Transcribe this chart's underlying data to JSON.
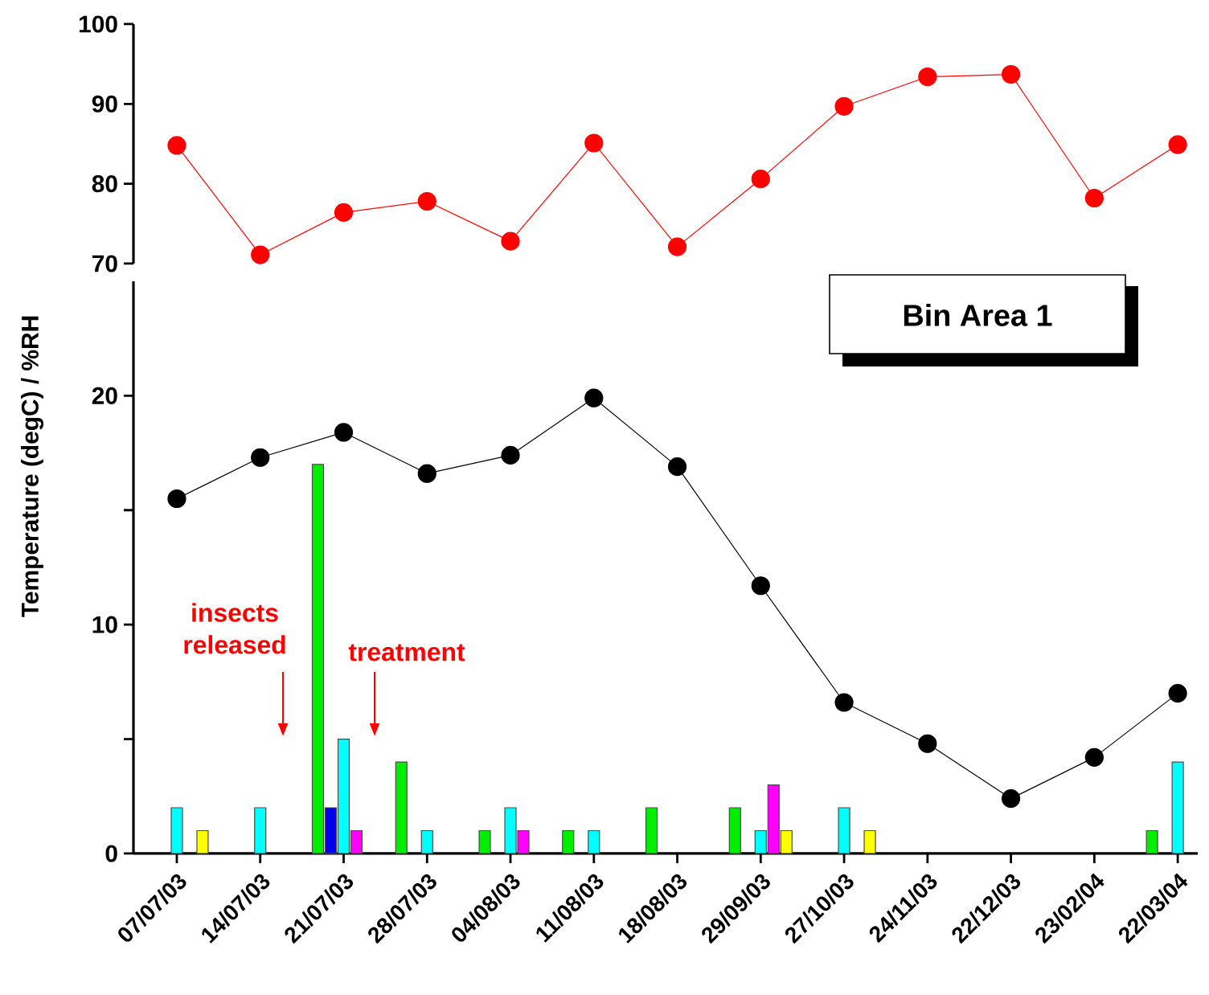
{
  "chart_data": [
    {
      "type": "line",
      "categories": [
        null,
        null,
        null,
        null,
        null,
        null,
        null,
        null,
        null,
        null,
        null,
        null,
        null
      ],
      "series": [
        {
          "color": "#ff0000",
          "values": [
            84.8,
            71.1,
            76.4,
            77.8,
            72.8,
            85.1,
            72.1,
            80.6,
            89.7,
            93.4,
            93.7,
            78.2,
            84.9
          ]
        }
      ],
      "ylim": [
        70,
        100
      ],
      "yticks": [
        70,
        80,
        90,
        100
      ],
      "tick_labels": "y",
      "marker": "circle",
      "line_style": "solid"
    },
    {
      "type": "bar",
      "ylabel": "Temperature (degC) / %RH",
      "categories": [
        "07/07/03",
        "14/07/03",
        "21/07/03",
        "28/07/03",
        "04/08/03",
        "11/08/03",
        "18/08/03",
        "29/09/03",
        "27/10/03",
        "24/11/03",
        "22/12/03",
        "23/02/04",
        "22/03/04"
      ],
      "series": [
        {
          "type": "line",
          "color": "#000000",
          "values": [
            15.5,
            17.3,
            18.4,
            16.6,
            17.4,
            19.9,
            16.9,
            11.7,
            6.6,
            4.8,
            2.4,
            4.2,
            7.0
          ]
        },
        {
          "color": "#00ee00",
          "values": [
            null,
            null,
            17,
            4,
            1,
            1,
            2,
            2,
            null,
            null,
            null,
            null,
            1
          ]
        },
        {
          "color": "#0000ee",
          "values": [
            null,
            null,
            2,
            null,
            null,
            null,
            null,
            null,
            null,
            null,
            null,
            null,
            null
          ]
        },
        {
          "color": "#00ffff",
          "values": [
            2,
            2,
            5,
            1,
            2,
            1,
            null,
            1,
            2,
            null,
            null,
            null,
            4
          ]
        },
        {
          "color": "#ff00ff",
          "values": [
            null,
            null,
            1,
            null,
            1,
            null,
            null,
            3,
            null,
            null,
            null,
            null,
            null
          ]
        },
        {
          "color": "#ffff00",
          "values": [
            1,
            null,
            null,
            null,
            null,
            null,
            null,
            1,
            1,
            null,
            null,
            null,
            null
          ]
        }
      ],
      "ylim": [
        0,
        25
      ],
      "yticks": [
        0,
        {
          "value": 5,
          "label": null
        },
        10,
        {
          "value": 15,
          "label": null
        },
        20
      ],
      "marker": "circle",
      "line_style": "solid",
      "annotations": [
        "Bin Area 1",
        "insects released",
        "treatment"
      ]
    }
  ]
}
